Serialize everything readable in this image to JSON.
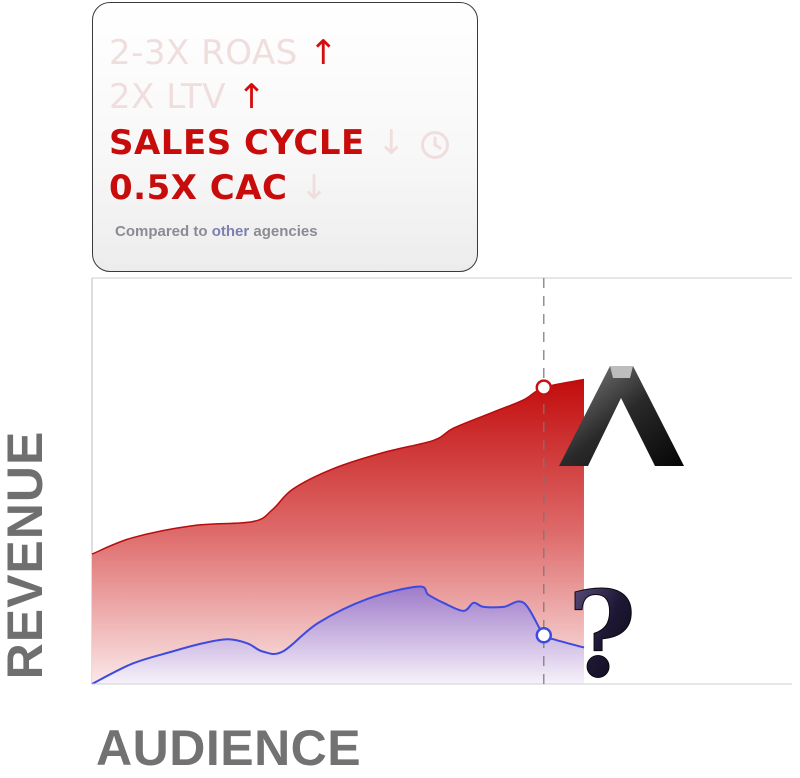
{
  "metrics": [
    {
      "text": "2-3X ROAS",
      "arrow": "↑"
    },
    {
      "text": "2X LTV",
      "arrow": "↑"
    },
    {
      "text": "SALES CYCLE",
      "arrow": "↓"
    },
    {
      "text": "0.5X CAC",
      "arrow": "↓"
    }
  ],
  "footnote": {
    "prefix": "Compared to ",
    "highlight": "other",
    "suffix": " agencies"
  },
  "chart_data": {
    "type": "area",
    "xlabel": "AUDIENCE",
    "ylabel": "REVENUE",
    "grid": false,
    "xlim": [
      0,
      100
    ],
    "ylim": [
      0,
      100
    ],
    "marker_x": 90,
    "series": [
      {
        "color": "#c91010",
        "x": [
          0,
          8,
          20,
          32,
          36,
          40,
          48,
          58,
          68,
          72,
          80,
          86,
          90,
          98
        ],
        "y": [
          32,
          36,
          39,
          40,
          43,
          48,
          53,
          57,
          60,
          63,
          67,
          70,
          73,
          75
        ]
      },
      {
        "color": "#3d4ae0",
        "x": [
          0,
          8,
          16,
          22,
          27,
          31,
          34,
          38,
          45,
          55,
          65,
          67,
          70,
          74,
          76,
          78,
          82,
          86,
          90,
          92,
          98
        ],
        "y": [
          0,
          5,
          8,
          10,
          11,
          10,
          8,
          8,
          15,
          21,
          24,
          22,
          20,
          18,
          20,
          19,
          19,
          20,
          12,
          11,
          9
        ]
      }
    ],
    "end_markers": [
      {
        "x": 90,
        "y": 73,
        "color": "#c91010",
        "symbol": "A"
      },
      {
        "x": 90,
        "y": 12,
        "color": "#3d4ae0",
        "symbol": "?"
      }
    ]
  }
}
